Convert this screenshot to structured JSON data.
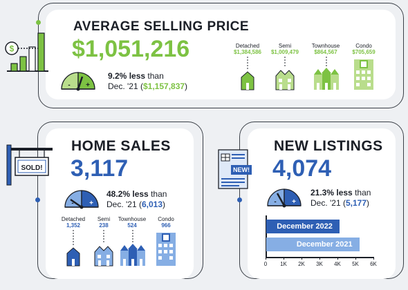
{
  "colors": {
    "green": "#7dc243",
    "green_light": "#b9dd8c",
    "blue": "#2e5fb4",
    "blue_light": "#86aee4",
    "dark": "#1b1f27"
  },
  "avg_price": {
    "title": "AVERAGE SELLING PRICE",
    "value": "$1,051,216",
    "change_pct": "9.2%",
    "change_word": "less",
    "than": "than",
    "prev_label": "Dec. '21 (",
    "prev_value": "$1,157,837",
    "prev_close": ")",
    "types": [
      {
        "label": "Detached",
        "value": "$1,384,586"
      },
      {
        "label": "Semi",
        "value": "$1,009,479"
      },
      {
        "label": "Townhouse",
        "value": "$864,567"
      },
      {
        "label": "Condo",
        "value": "$705,659"
      }
    ]
  },
  "home_sales": {
    "title": "HOME SALES",
    "sign_text": "SOLD!",
    "value": "3,117",
    "change_pct": "48.2%",
    "change_word": "less",
    "than": "than",
    "prev_label": "Dec. '21 (",
    "prev_value": "6,013",
    "prev_close": ")",
    "types": [
      {
        "label": "Detached",
        "value": "1,352"
      },
      {
        "label": "Semi",
        "value": "238"
      },
      {
        "label": "Townhouse",
        "value": "524"
      },
      {
        "label": "Condo",
        "value": "966"
      }
    ]
  },
  "new_listings": {
    "title": "NEW LISTINGS",
    "badge_text": "NEW!",
    "value": "4,074",
    "change_pct": "21.3%",
    "change_word": "less",
    "than": "than",
    "prev_label": "Dec. '21 (",
    "prev_value": "5,177",
    "prev_close": ")"
  },
  "chart_data": {
    "type": "bar",
    "orientation": "horizontal",
    "categories": [
      "December 2022",
      "December 2021"
    ],
    "values": [
      4074,
      5177
    ],
    "xlim": [
      0,
      6000
    ],
    "ticks": [
      "0",
      "1K",
      "2K",
      "3K",
      "4K",
      "5K",
      "6K"
    ],
    "grid": false
  }
}
